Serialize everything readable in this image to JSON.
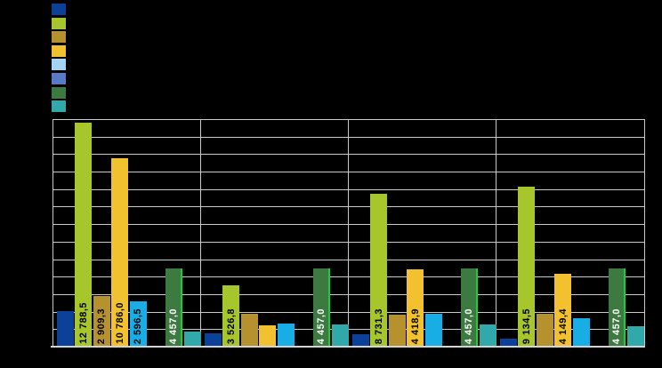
{
  "background_color": "#000000",
  "legend": {
    "position": "top-left",
    "labels_visible": false,
    "swatch_colors": [
      "#0c419a",
      "#a6c62b",
      "#b6922e",
      "#f2c12f",
      "#a5d5f5",
      "#5b7ac5",
      "#3d7a41",
      "#31a9ab"
    ]
  },
  "axes": {
    "y_tick_labels_visible": false,
    "x_category_labels_visible": false,
    "gridline_color": "#c9c9c9",
    "axis_line_color": "#d4d4d4"
  },
  "chart_data": {
    "type": "bar",
    "categories": [
      "",
      "",
      "",
      ""
    ],
    "ylim": [
      0,
      13000
    ],
    "gridline_step": 1000,
    "grid": true,
    "legend_position": "top-left",
    "series": [
      {
        "name": "series-1-dark-blue",
        "color": "#0c419a",
        "values": [
          2050,
          775,
          720,
          450
        ],
        "labels": [
          "",
          "",
          "",
          ""
        ]
      },
      {
        "name": "series-2-yellow-green",
        "color": "#a6c62b",
        "values": [
          12788.5,
          3526.8,
          8731.3,
          9134.5
        ],
        "labels": [
          "12 788,5",
          "3 526,8",
          "8 731,3",
          "9 134,5"
        ],
        "label_color": "#000000"
      },
      {
        "name": "series-3-ochre",
        "color": "#b6922e",
        "values": [
          2909.3,
          1870,
          1820,
          1880
        ],
        "labels": [
          "2 909,3",
          "",
          "",
          ""
        ],
        "label_color": "#000000"
      },
      {
        "name": "series-4-yellow",
        "color": "#f2c12f",
        "values": [
          10786.0,
          1230,
          4418.9,
          4149.4
        ],
        "labels": [
          "10 786,0",
          "",
          "4 418,9",
          "4 149,4"
        ],
        "label_color": "#000000"
      },
      {
        "name": "series-5-light-blue",
        "color": "#19ade6",
        "values": [
          2596.5,
          1330,
          1870,
          1620
        ],
        "labels": [
          "2 596,5",
          "",
          "",
          ""
        ],
        "label_color": "#000000"
      },
      {
        "name": "series-6-medium-blue",
        "color": "#5b7ac5",
        "values": [
          0,
          0,
          0,
          0
        ],
        "labels": [
          "",
          "",
          "",
          ""
        ]
      },
      {
        "name": "series-7-dark-green",
        "color": "#3d7a41",
        "edge_color": "#1ecb3c",
        "values": [
          4457.0,
          4457.0,
          4457.0,
          4457.0
        ],
        "labels": [
          "4 457,0",
          "4 457,0",
          "4 457,0",
          "4 457,0"
        ],
        "label_color": "#ffffff"
      },
      {
        "name": "series-8-teal",
        "color": "#31a9ab",
        "values": [
          850,
          1250,
          1280,
          1150
        ],
        "labels": [
          "",
          "",
          "",
          ""
        ]
      }
    ]
  }
}
